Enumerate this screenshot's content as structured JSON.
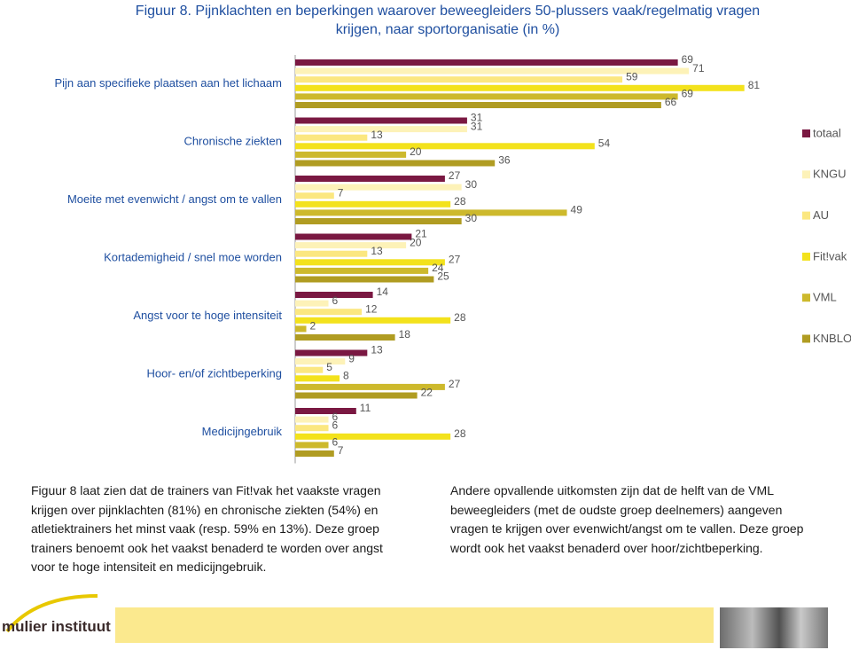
{
  "chart_data": {
    "type": "bar",
    "orientation": "horizontal",
    "title": "Figuur 8. Pijnklachten en beperkingen waarover beweegleiders 50-plussers vaak/regelmatig vragen krijgen, naar sportorganisatie (in %)",
    "categories": [
      "Pijn aan specifieke  plaatsen aan  het lichaam",
      "Chronische ziekten",
      "Moeite met evenwicht / angst om te vallen",
      "Kortademigheid / snel moe worden",
      "Angst voor te hoge intensiteit",
      "Hoor- en/of zichtbeperking",
      "Medicijngebruik"
    ],
    "series": [
      {
        "name": "totaal",
        "color": "#7a1842",
        "values": [
          69,
          31,
          27,
          21,
          14,
          13,
          11
        ]
      },
      {
        "name": "KNGU",
        "color": "#fdf2b8",
        "values": [
          71,
          31,
          30,
          20,
          6,
          9,
          6
        ]
      },
      {
        "name": "AU",
        "color": "#fbe780",
        "values": [
          59,
          13,
          7,
          13,
          12,
          5,
          6
        ]
      },
      {
        "name": "Fit!vak",
        "color": "#f3e21c",
        "values": [
          81,
          54,
          28,
          27,
          28,
          8,
          28
        ]
      },
      {
        "name": "VML",
        "color": "#cdb92c",
        "values": [
          69,
          20,
          49,
          24,
          2,
          27,
          6
        ]
      },
      {
        "name": "KNBLO",
        "color": "#b09c22",
        "values": [
          66,
          36,
          30,
          25,
          18,
          22,
          7
        ]
      }
    ],
    "xlim": [
      0,
      90
    ],
    "legend": "right"
  },
  "text": {
    "left": [
      "Figuur 8 laat zien dat de trainers van Fit!vak het vaakste vragen",
      "krijgen over pijnklachten (81%) en chronische ziekten (54%) en",
      "atletiektrainers het minst vaak (resp. 59% en 13%). Deze groep",
      "trainers benoemt ook het vaakst benaderd te worden over angst",
      "voor te hoge intensiteit en medicijngebruik."
    ],
    "right": [
      "Andere opvallende uitkomsten zijn dat de helft van de VML",
      "beweegleiders (met de oudste groep deelnemers) aangeven",
      "vragen te krijgen over evenwicht/angst om te vallen. Deze groep",
      "wordt ook het vaakst benaderd over hoor/zichtbeperking."
    ]
  },
  "footer": {
    "logo": "mulier instituut"
  }
}
